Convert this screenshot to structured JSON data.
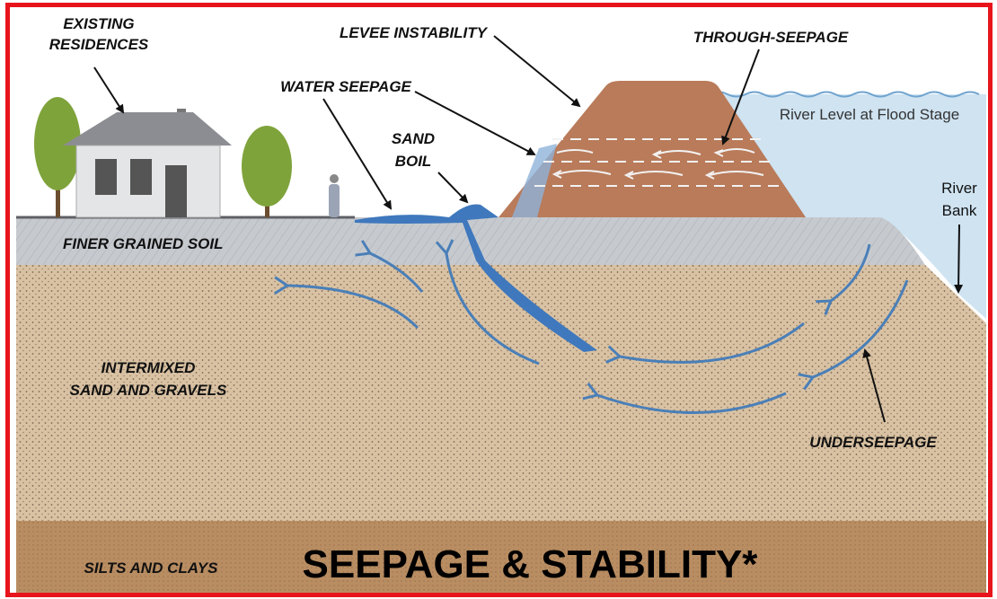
{
  "labels": {
    "existing_residences": [
      "EXISTING",
      "RESIDENCES"
    ],
    "levee_instability": "LEVEE INSTABILITY",
    "through_seepage": "THROUGH-SEEPAGE",
    "water_seepage": "WATER SEEPAGE",
    "sand_boil": [
      "SAND",
      "BOIL"
    ],
    "river_level": "River Level at Flood Stage",
    "river_bank": [
      "River",
      "Bank"
    ],
    "finer_grained_soil": "FINER GRAINED SOIL",
    "intermixed": [
      "INTERMIXED",
      "SAND AND GRAVELS"
    ],
    "underseepage": "UNDERSEEPAGE",
    "silts_and_clays": "SILTS AND CLAYS"
  },
  "title": "SEEPAGE & STABILITY*"
}
